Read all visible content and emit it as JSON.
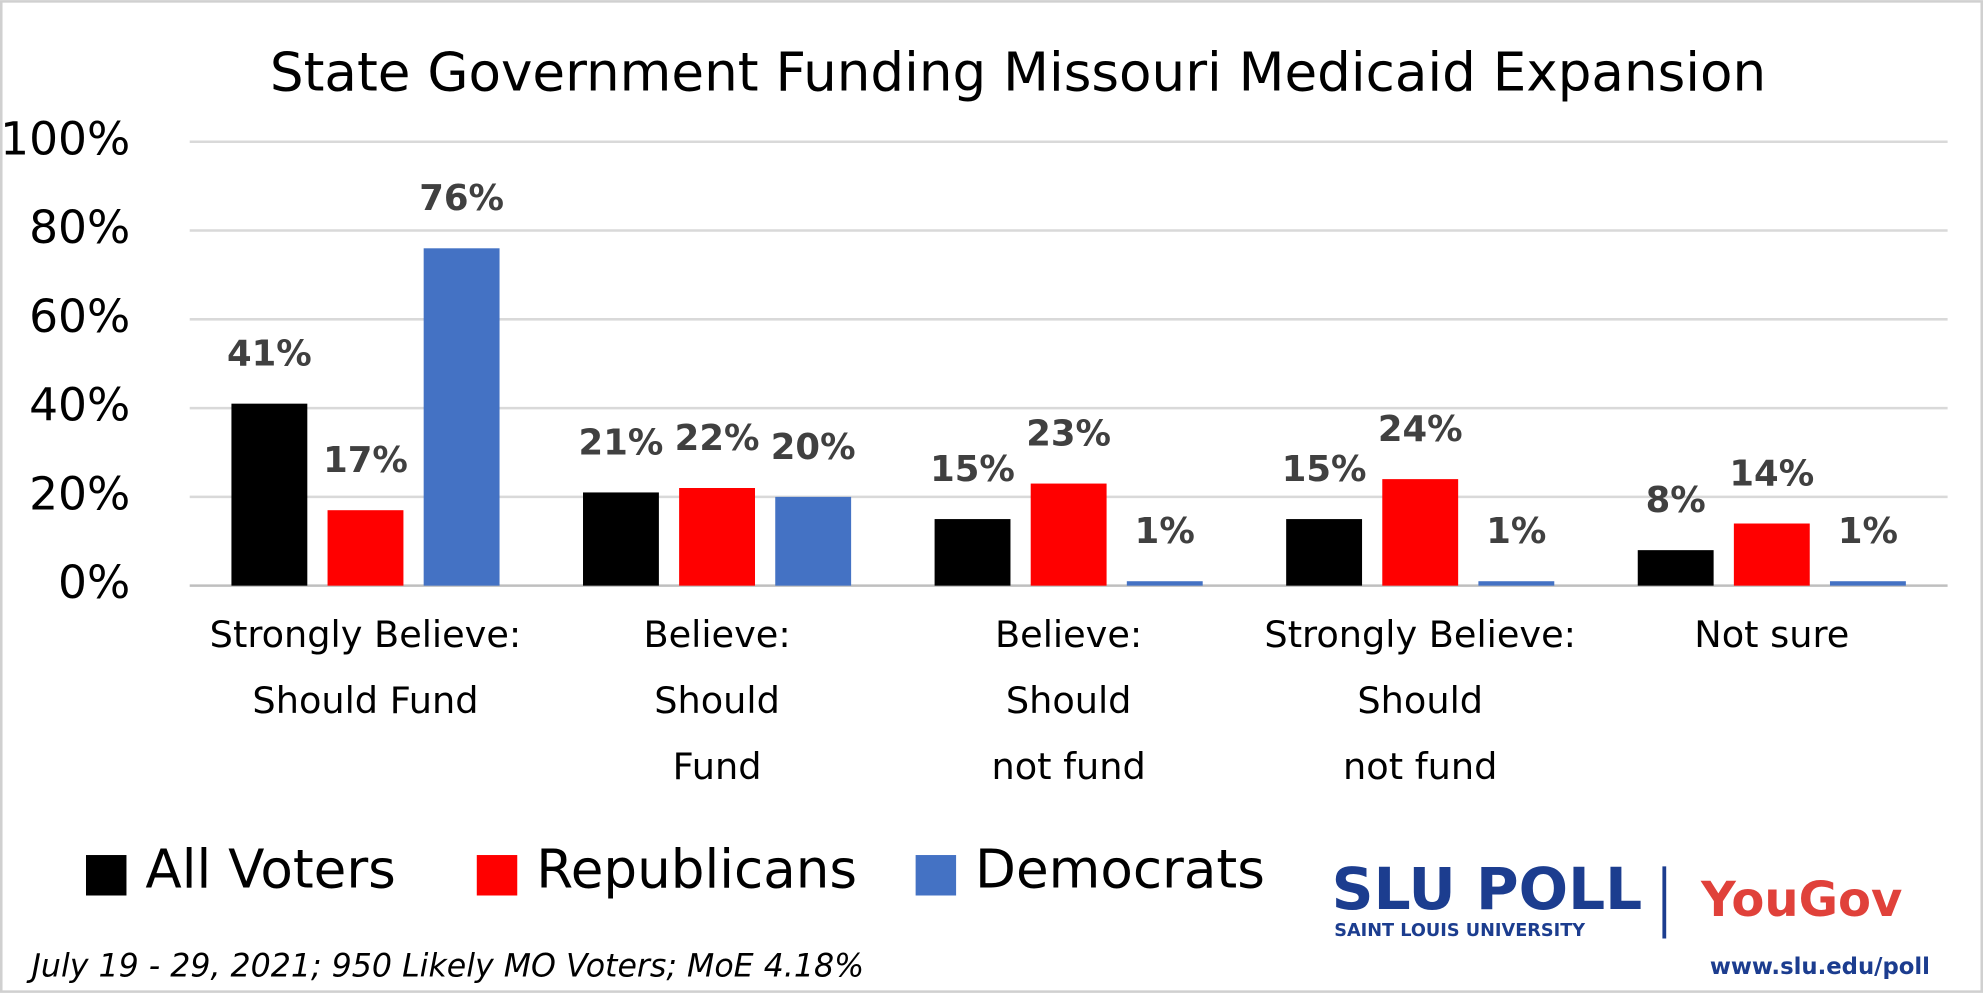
{
  "chart_data": {
    "type": "bar",
    "title": "State Government Funding Missouri Medicaid Expansion",
    "categories": [
      "Strongly Believe:\nShould Fund",
      "Believe:\nShould\nFund",
      "Believe:\nShould\nnot fund",
      "Strongly Believe:\nShould\nnot fund",
      "Not sure"
    ],
    "series": [
      {
        "name": "All Voters",
        "color": "#000000",
        "values": [
          41,
          21,
          15,
          15,
          8
        ],
        "value_labels": [
          "41%",
          "21%",
          "15%",
          "15%",
          "8%"
        ]
      },
      {
        "name": "Republicans",
        "color": "#ff0000",
        "values": [
          17,
          22,
          23,
          24,
          14
        ],
        "value_labels": [
          "17%",
          "22%",
          "23%",
          "24%",
          "14%"
        ]
      },
      {
        "name": "Democrats",
        "color": "#4472c4",
        "values": [
          76,
          20,
          1,
          1,
          1
        ],
        "value_labels": [
          "76%",
          "20%",
          "1%",
          "1%",
          "1%"
        ]
      }
    ],
    "ylim": [
      0,
      100
    ],
    "yticks": [
      {
        "value": 0,
        "label": "0%"
      },
      {
        "value": 20,
        "label": "20%"
      },
      {
        "value": 40,
        "label": "40%"
      },
      {
        "value": 60,
        "label": "60%"
      },
      {
        "value": 80,
        "label": "80%"
      },
      {
        "value": 100,
        "label": "100%"
      }
    ],
    "grid": true,
    "legend": "bottom-left"
  },
  "footnote": "July 19 - 29, 2021; 950 Likely MO Voters; MoE 4.18%",
  "branding": {
    "slu": "SLU POLL",
    "slu_sub": "SAINT LOUIS UNIVERSITY",
    "yougov": "YouGov",
    "url": "www.slu.edu/poll"
  }
}
